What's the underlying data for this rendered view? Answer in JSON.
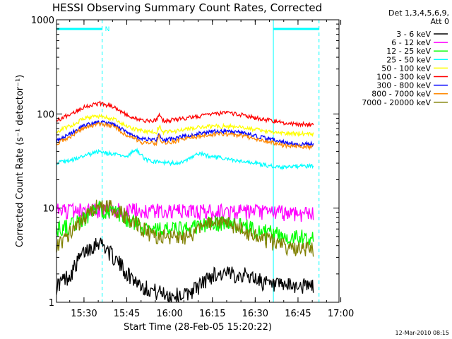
{
  "chart_data": {
    "type": "line",
    "title": "HESSI Observing Summary Count Rates, Corrected",
    "xlabel": "Start Time (28-Feb-05 15:20:22)",
    "ylabel": "Corrected Count Rate (s⁻¹ detector⁻¹)",
    "yscale": "log",
    "ylim": [
      1,
      1000
    ],
    "xlim_minutes": [
      0,
      99
    ],
    "x_ticks": [
      "15:30",
      "15:45",
      "16:00",
      "16:15",
      "16:30",
      "16:45",
      "17:00"
    ],
    "y_ticks": [
      "1",
      "10",
      "100",
      "1000"
    ],
    "legend_title": [
      "Det 1,3,4,5,6,9,",
      "Att 0"
    ],
    "legend_position": "right",
    "timestamp": "12-Mar-2010 08:15",
    "marker_label": "N",
    "night_bars_minutes": [
      [
        0,
        16
      ],
      [
        76,
        92
      ]
    ],
    "series": [
      {
        "name": "3 - 6 keV",
        "color": "#000000",
        "x": [
          0,
          5,
          10,
          15,
          20,
          25,
          30,
          35,
          40,
          45,
          50,
          55,
          60,
          65,
          70,
          75,
          80,
          85,
          90
        ],
        "y": [
          1.5,
          2,
          3.5,
          4.5,
          3,
          2,
          1.5,
          1.3,
          1.2,
          1.2,
          1.5,
          2,
          2,
          2,
          1.8,
          1.5,
          1.5,
          1.5,
          1.5
        ]
      },
      {
        "name": "6 - 12 keV",
        "color": "#ff00ff",
        "x": [
          0,
          20,
          40,
          60,
          80,
          90
        ],
        "y": [
          9.5,
          9.5,
          9.3,
          9.2,
          9,
          8.8
        ]
      },
      {
        "name": "12 - 25 keV",
        "color": "#00ff00",
        "x": [
          0,
          5,
          10,
          15,
          20,
          25,
          30,
          35,
          40,
          45,
          50,
          55,
          60,
          65,
          70,
          75,
          80,
          85,
          90
        ],
        "y": [
          6,
          6.5,
          8,
          10,
          9,
          7.5,
          6.5,
          6,
          6,
          6,
          6.5,
          7,
          7,
          6.5,
          6,
          5.5,
          5,
          5,
          5
        ]
      },
      {
        "name": "25 - 50 keV",
        "color": "#00ffff",
        "x": [
          0,
          5,
          10,
          15,
          20,
          25,
          28,
          31,
          35,
          40,
          45,
          50,
          55,
          60,
          65,
          70,
          75,
          80,
          85,
          90
        ],
        "y": [
          30,
          32,
          36,
          40,
          37,
          36,
          42,
          33,
          31,
          30,
          31,
          38,
          35,
          33,
          31,
          30,
          28,
          27,
          28,
          28
        ]
      },
      {
        "name": "50 - 100 keV",
        "color": "#ffff00",
        "x": [
          0,
          5,
          10,
          15,
          20,
          25,
          30,
          35,
          36,
          37,
          40,
          45,
          50,
          55,
          60,
          65,
          70,
          75,
          80,
          85,
          90
        ],
        "y": [
          65,
          75,
          90,
          95,
          88,
          72,
          66,
          64,
          75,
          64,
          65,
          68,
          72,
          74,
          74,
          72,
          68,
          64,
          62,
          62,
          62
        ]
      },
      {
        "name": "100 - 300 keV",
        "color": "#ff0000",
        "x": [
          0,
          5,
          10,
          15,
          20,
          25,
          30,
          35,
          36,
          37,
          40,
          45,
          50,
          55,
          60,
          65,
          70,
          75,
          80,
          85,
          90
        ],
        "y": [
          85,
          100,
          120,
          130,
          120,
          95,
          85,
          85,
          100,
          85,
          86,
          90,
          95,
          100,
          102,
          98,
          90,
          85,
          80,
          78,
          78
        ]
      },
      {
        "name": "300 - 800 keV",
        "color": "#0000ff",
        "x": [
          0,
          5,
          10,
          15,
          20,
          25,
          30,
          35,
          36,
          37,
          40,
          45,
          50,
          55,
          60,
          65,
          70,
          75,
          80,
          85,
          90
        ],
        "y": [
          52,
          62,
          76,
          82,
          78,
          62,
          54,
          53,
          62,
          53,
          54,
          58,
          62,
          65,
          65,
          63,
          58,
          54,
          50,
          48,
          48
        ]
      },
      {
        "name": "800 - 7000 keV",
        "color": "#ff8800",
        "x": [
          0,
          5,
          10,
          15,
          20,
          25,
          30,
          35,
          36,
          37,
          40,
          45,
          50,
          55,
          60,
          65,
          70,
          75,
          80,
          85,
          90
        ],
        "y": [
          48,
          58,
          72,
          78,
          74,
          58,
          50,
          49,
          58,
          49,
          50,
          54,
          58,
          61,
          61,
          59,
          54,
          50,
          46,
          45,
          45
        ]
      },
      {
        "name": "7000 - 20000 keV",
        "color": "#808000",
        "x": [
          0,
          5,
          10,
          15,
          20,
          25,
          30,
          35,
          40,
          45,
          50,
          55,
          60,
          65,
          70,
          75,
          80,
          85,
          90
        ],
        "y": [
          4,
          5.5,
          8,
          11,
          10,
          8,
          6,
          5,
          5,
          5,
          6,
          7,
          7,
          6,
          5,
          4.5,
          4,
          3.8,
          3.8
        ]
      }
    ]
  }
}
